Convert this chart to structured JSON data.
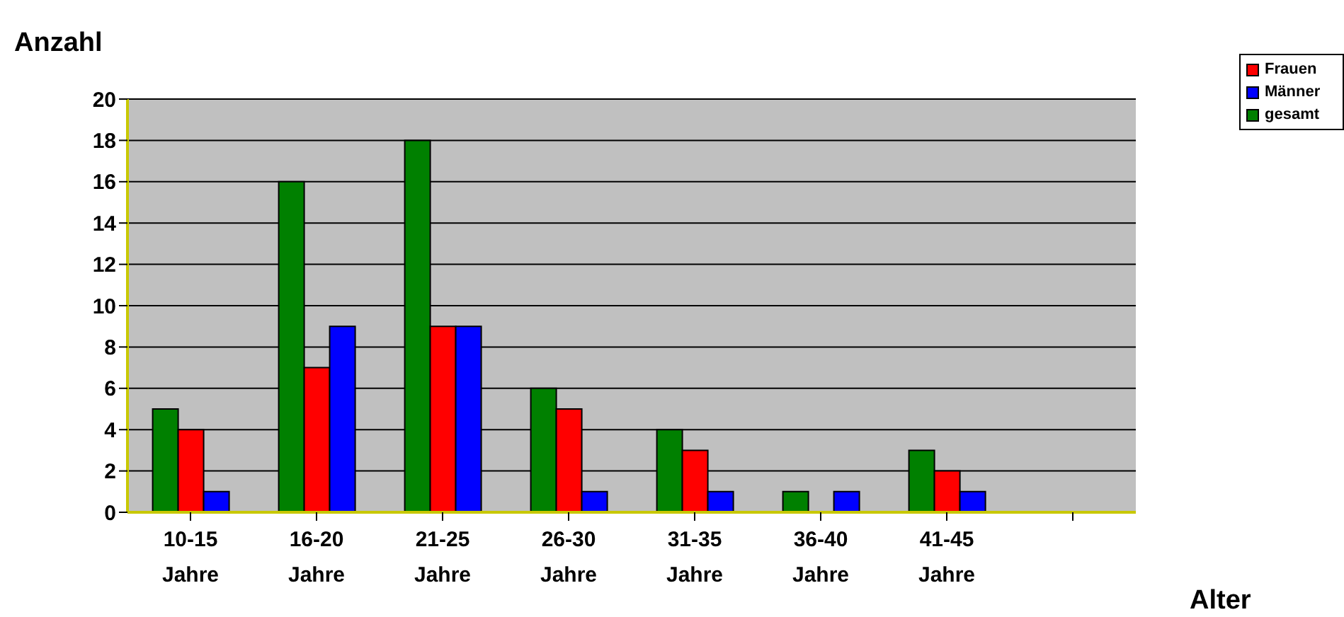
{
  "chart_data": {
    "type": "bar",
    "xlabel": "Alter",
    "ylabel": "Anzahl",
    "categories": [
      "10-15 Jahre",
      "16-20 Jahre",
      "21-25 Jahre",
      "26-30 Jahre",
      "31-35 Jahre",
      "36-40 Jahre",
      "41-45 Jahre",
      null
    ],
    "series": [
      {
        "name": "gesamt",
        "color": "#008000",
        "values": [
          5,
          16,
          18,
          6,
          4,
          1,
          3,
          null
        ]
      },
      {
        "name": "Frauen",
        "color": "#ff0000",
        "values": [
          4,
          7,
          9,
          5,
          3,
          0,
          2,
          null
        ]
      },
      {
        "name": "Männer",
        "color": "#0000ff",
        "values": [
          1,
          9,
          9,
          1,
          1,
          1,
          1,
          null
        ]
      }
    ],
    "ylim": [
      0,
      20
    ],
    "yticks": [
      0,
      2,
      4,
      6,
      8,
      10,
      12,
      14,
      16,
      18,
      20
    ],
    "grid": "y",
    "legend": "top right"
  }
}
